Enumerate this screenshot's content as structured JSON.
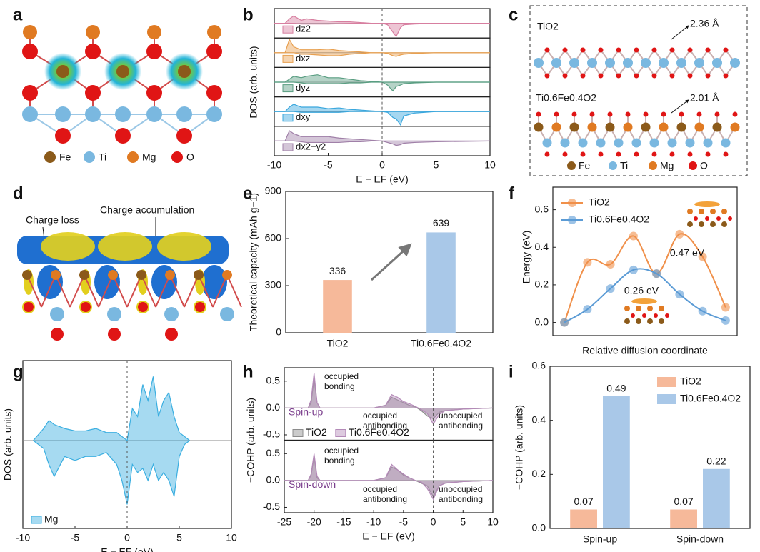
{
  "panel_letters": [
    "a",
    "b",
    "c",
    "d",
    "e",
    "f",
    "g",
    "h",
    "i"
  ],
  "structures": {
    "a": {
      "legend": [
        "Fe",
        "Ti",
        "Mg",
        "O"
      ]
    },
    "c": {
      "labels": [
        "TiO2",
        "Ti0.6Fe0.4O2"
      ],
      "distances": [
        "2.36 Å",
        "2.01 Å"
      ],
      "legend": [
        "Fe",
        "Ti",
        "Mg",
        "O"
      ]
    },
    "d": {
      "labels": [
        "Charge loss",
        "Charge accumulation"
      ]
    }
  },
  "chart_data": [
    {
      "type": "area",
      "ylabel": "DOS (arb. units)",
      "xlabel": "E − EF (eV)",
      "xlim": [
        -10,
        10
      ],
      "xticks": [
        -10,
        -5,
        0,
        5,
        10
      ],
      "ylim": [
        -1,
        1
      ],
      "vline": 0,
      "x": [
        -10,
        -9,
        -8.6,
        -8.2,
        -7.5,
        -7,
        -6,
        -5,
        -4,
        -3,
        -2,
        -1,
        0,
        0.5,
        1,
        1.3,
        1.7,
        2,
        3,
        5,
        10
      ],
      "panels": [
        {
          "series": [
            {
              "name": "dz2",
              "color": "#d77fa0",
              "values": [
                0,
                0,
                0.3,
                0.5,
                0.2,
                0.3,
                0.2,
                0.15,
                0.1,
                0.1,
                0.05,
                0,
                0,
                0,
                0,
                0,
                0,
                0,
                0,
                0,
                0
              ]
            },
            {
              "color": "#d77fa0",
              "values": [
                0,
                0,
                0,
                0,
                -0.05,
                -0.05,
                -0.05,
                -0.05,
                -0.03,
                0,
                0,
                0,
                0,
                -0.1,
                -0.6,
                -0.9,
                -0.3,
                -0.1,
                -0.05,
                0,
                0
              ]
            }
          ]
        },
        {
          "series": [
            {
              "name": "dxz",
              "color": "#e8a050",
              "values": [
                0,
                0,
                0.9,
                0.4,
                0.2,
                0.2,
                0.2,
                0.25,
                0.15,
                0.1,
                0.05,
                0,
                0,
                0,
                0,
                0,
                0,
                0,
                0,
                0,
                0
              ]
            },
            {
              "color": "#e8a050",
              "values": [
                0,
                0,
                0,
                0,
                -0.1,
                -0.1,
                -0.15,
                -0.2,
                -0.2,
                -0.1,
                -0.05,
                0,
                0,
                -0.05,
                -0.2,
                -0.25,
                -0.15,
                -0.1,
                -0.05,
                0,
                0
              ]
            }
          ]
        },
        {
          "series": [
            {
              "name": "dyz",
              "color": "#5a9e82",
              "values": [
                0,
                0,
                0.2,
                0.4,
                0.3,
                0.4,
                0.5,
                0.3,
                0.3,
                0.2,
                0.1,
                0.05,
                0,
                0,
                0,
                0,
                0,
                0,
                0,
                0,
                0
              ]
            },
            {
              "color": "#5a9e82",
              "values": [
                0,
                0,
                0,
                0,
                -0.05,
                -0.1,
                -0.1,
                -0.1,
                -0.1,
                -0.05,
                -0.05,
                0,
                0,
                -0.2,
                -0.6,
                -0.3,
                -0.2,
                -0.1,
                -0.05,
                0,
                0
              ]
            }
          ]
        },
        {
          "series": [
            {
              "name": "dxy",
              "color": "#3aa7dd",
              "values": [
                0,
                0,
                0.3,
                0.5,
                0.3,
                0.3,
                0.3,
                0.2,
                0.25,
                0.15,
                0.1,
                0.05,
                0,
                0,
                0,
                0,
                0,
                0,
                0,
                0,
                0
              ]
            },
            {
              "color": "#3aa7dd",
              "values": [
                0,
                0,
                0,
                0,
                -0.05,
                -0.05,
                -0.05,
                -0.05,
                -0.05,
                0,
                0,
                0,
                0,
                -0.05,
                -0.4,
                -0.5,
                -0.9,
                -0.3,
                -0.1,
                0,
                0
              ]
            }
          ]
        },
        {
          "series": [
            {
              "name": "dx2−y2",
              "color": "#a080a8",
              "values": [
                0,
                0,
                0.7,
                0.5,
                0.3,
                0.3,
                0.3,
                0.3,
                0.2,
                0.15,
                0.1,
                0.05,
                0,
                0,
                0,
                0,
                0,
                0,
                0,
                0,
                0
              ]
            },
            {
              "color": "#a080a8",
              "values": [
                0,
                0,
                0,
                0,
                -0.05,
                -0.1,
                -0.1,
                -0.1,
                -0.1,
                -0.05,
                -0.05,
                0,
                0,
                -0.1,
                -0.2,
                -0.3,
                -0.25,
                -0.15,
                -0.1,
                -0.05,
                0
              ]
            }
          ]
        }
      ]
    },
    {
      "type": "bar",
      "ylabel": "Theoretical capacity (mAh g−1)",
      "categories": [
        "TiO2",
        "Ti0.6Fe0.4O2"
      ],
      "values": [
        336,
        639
      ],
      "colors": [
        "#f6b99a",
        "#a9c8e8"
      ],
      "ylim": [
        0,
        900
      ],
      "yticks": [
        0,
        300,
        600,
        900
      ]
    },
    {
      "type": "line",
      "xlabel": "Relative diffusion coordinate",
      "ylabel": "Energy (eV)",
      "xlim": [
        -0.5,
        7.5
      ],
      "ylim": [
        -0.07,
        0.72
      ],
      "yticks": [
        {
          "value": 0,
          "label": "0.0"
        },
        0.2,
        0.4,
        0.6
      ],
      "x": [
        0,
        1,
        2,
        3,
        4,
        5,
        6,
        7
      ],
      "series": [
        {
          "name": "TiO2",
          "color": "#f0904a",
          "values": [
            0,
            0.32,
            0.31,
            0.46,
            0.26,
            0.47,
            0.35,
            0.08
          ]
        },
        {
          "name": "Ti0.6Fe0.4O2",
          "color": "#5b9bd5",
          "values": [
            0,
            0.07,
            0.18,
            0.28,
            0.26,
            0.15,
            0.06,
            0.01
          ]
        }
      ],
      "annotations": [
        "0.47 eV",
        "0.26 eV"
      ],
      "legend": "upper left"
    },
    {
      "type": "area",
      "ylabel": "DOS (arb. units)",
      "xlabel": "E − EF (eV)",
      "xlim": [
        -10,
        10
      ],
      "xticks": [
        -10,
        -5,
        0,
        5,
        10
      ],
      "ylim": [
        -1.1,
        1
      ],
      "vline": 0,
      "x": [
        -9,
        -8,
        -7.5,
        -7,
        -6,
        -5,
        -4,
        -3,
        -2,
        -1,
        -0.5,
        0,
        0.5,
        1,
        1.5,
        2,
        2.5,
        3,
        3.5,
        4,
        4.5,
        5,
        5.5,
        6
      ],
      "panels": [
        {
          "series": [
            {
              "name": "Mg",
              "color": "#3aaee0",
              "values": [
                0,
                0.15,
                0.25,
                0.2,
                0.15,
                0.12,
                0.12,
                0.15,
                0.1,
                0.1,
                0.05,
                0,
                0.4,
                0.3,
                0.7,
                0.5,
                0.8,
                0.3,
                0.5,
                0.6,
                0.3,
                0.1,
                0.05,
                0
              ]
            },
            {
              "color": "#3aaee0",
              "values": [
                0,
                -0.1,
                -0.3,
                -0.45,
                -0.2,
                -0.25,
                -0.2,
                -0.2,
                -0.15,
                -0.3,
                -0.5,
                -0.8,
                -0.3,
                -0.4,
                -0.35,
                -0.5,
                -0.3,
                -0.5,
                -0.4,
                -0.5,
                -0.7,
                -0.2,
                -0.05,
                0
              ]
            }
          ]
        }
      ]
    },
    {
      "type": "area",
      "ylabel": "−COHP (arb. units)",
      "xlabel": "E − EF (eV)",
      "xlim": [
        -25,
        10
      ],
      "xticks": [
        -25,
        -20,
        -15,
        -10,
        -5,
        0,
        5,
        10
      ],
      "ylim": [
        -0.6,
        0.75
      ],
      "yticks": [
        -0.5,
        {
          "value": 0,
          "label": "0.0"
        },
        0.5
      ],
      "vline": 0,
      "x": [
        -25,
        -21,
        -20.5,
        -20,
        -19.5,
        -19,
        -15,
        -10,
        -8,
        -7,
        -6,
        -5,
        -4,
        -3,
        -2,
        -1,
        0,
        1,
        2,
        5,
        10
      ],
      "panels": [
        {
          "label": "Spin-up",
          "annotations": [
            [
              "occupied",
              "bonding"
            ],
            [
              "occupied",
              "antibonding"
            ],
            [
              "unoccupied",
              "antibonding"
            ]
          ],
          "series": [
            {
              "name": "TiO2",
              "color": "#8c8c8c",
              "values": [
                0,
                0,
                0.1,
                0.55,
                0.1,
                0,
                0,
                0,
                0.05,
                0.2,
                0.15,
                0.1,
                0.05,
                0.02,
                -0.05,
                -0.15,
                -0.2,
                -0.08,
                -0.05,
                -0.02,
                0
              ]
            },
            {
              "name": "Ti0.6Fe0.4O2",
              "color": "#b48ab8",
              "values": [
                0,
                0,
                0.15,
                0.65,
                0.1,
                0,
                0,
                0,
                0.05,
                0.25,
                0.2,
                0.12,
                0.08,
                0.03,
                -0.03,
                -0.1,
                -0.3,
                -0.12,
                -0.05,
                -0.02,
                0
              ]
            }
          ]
        },
        {
          "label": "Spin-down",
          "annotations": [
            [
              "occupied",
              "bonding"
            ],
            [
              "occupied",
              "antibonding"
            ],
            [
              "unoccupied",
              "antibonding"
            ]
          ],
          "series": [
            {
              "color": "#8c8c8c",
              "values": [
                0,
                0,
                0.1,
                0.45,
                0.05,
                0,
                0,
                0,
                0.05,
                0.25,
                0.2,
                0.1,
                0.05,
                0,
                -0.05,
                -0.1,
                -0.3,
                -0.1,
                -0.05,
                -0.02,
                0
              ]
            },
            {
              "color": "#b48ab8",
              "values": [
                0,
                0,
                0.12,
                0.5,
                0.08,
                0,
                0,
                0,
                0.05,
                0.3,
                0.2,
                0.12,
                0.05,
                0,
                -0.03,
                -0.15,
                -0.35,
                -0.1,
                -0.05,
                -0.02,
                0
              ]
            }
          ]
        }
      ]
    },
    {
      "type": "bar",
      "ylabel": "−COHP (arb. units)",
      "categories": [
        "Spin-up",
        "Spin-down"
      ],
      "series": [
        {
          "name": "TiO2",
          "color": "#f6b99a",
          "values": [
            0.07,
            0.07
          ]
        },
        {
          "name": "Ti0.6Fe0.4O2",
          "color": "#a9c8e8",
          "values": [
            0.49,
            0.22
          ]
        }
      ],
      "ylim": [
        0,
        0.6
      ],
      "yticks": [
        {
          "value": 0,
          "label": "0.0"
        },
        0.2,
        0.4,
        0.6
      ],
      "legend": "upper right"
    }
  ]
}
